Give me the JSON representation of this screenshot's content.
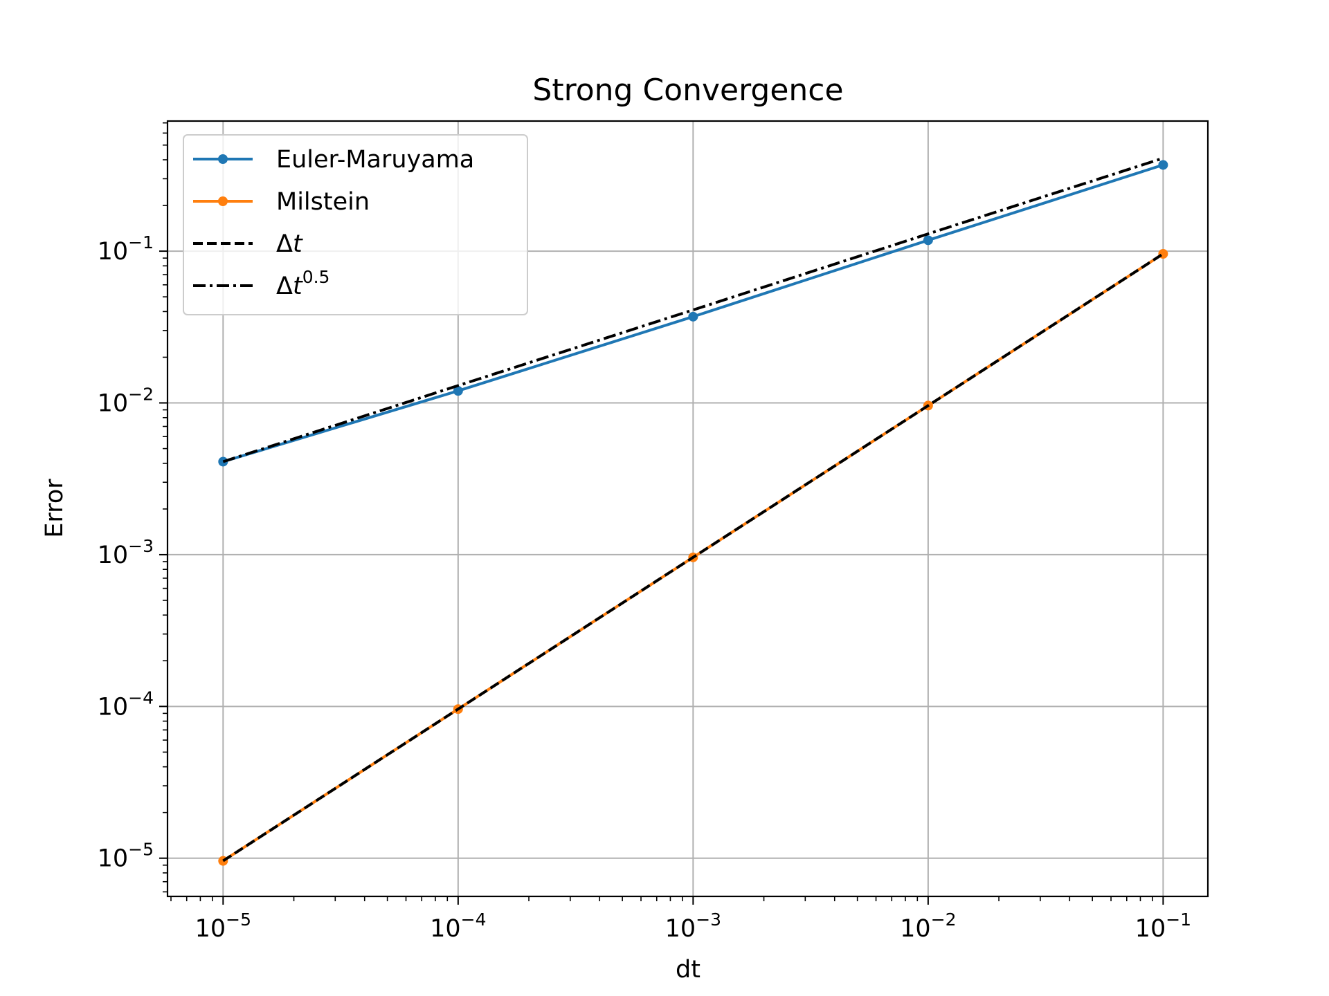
{
  "chart_data": {
    "type": "line",
    "title": "Strong Convergence",
    "xlabel": "dt",
    "ylabel": "Error",
    "xscale": "log",
    "yscale": "log",
    "xlim": [
      5.8e-06,
      0.155
    ],
    "ylim": [
      5.6e-06,
      0.72
    ],
    "grid": true,
    "legend_position": "top-left",
    "x": [
      1e-05,
      0.0001,
      0.001,
      0.01,
      0.1
    ],
    "series": [
      {
        "name": "Euler-Maruyama",
        "color": "#1f77b4",
        "style": "solid",
        "marker": "circle",
        "values": [
          0.0041,
          0.012,
          0.037,
          0.118,
          0.37
        ]
      },
      {
        "name": "Milstein",
        "color": "#ff7f0e",
        "style": "solid",
        "marker": "circle",
        "values": [
          9.6e-06,
          9.6e-05,
          0.00096,
          0.0096,
          0.096
        ]
      },
      {
        "name": "Δt",
        "color": "#000000",
        "style": "dashed",
        "marker": "none",
        "values": [
          9.6e-06,
          9.6e-05,
          0.00096,
          0.0096,
          0.096
        ]
      },
      {
        "name": "Δt^0.5",
        "color": "#000000",
        "style": "dashdot",
        "marker": "none",
        "values": [
          0.0041,
          0.013,
          0.041,
          0.13,
          0.41
        ]
      }
    ],
    "xticks": [
      {
        "base": "10",
        "exp": "−5"
      },
      {
        "base": "10",
        "exp": "−4"
      },
      {
        "base": "10",
        "exp": "−3"
      },
      {
        "base": "10",
        "exp": "−2"
      },
      {
        "base": "10",
        "exp": "−1"
      }
    ],
    "yticks": [
      {
        "base": "10",
        "exp": "−5"
      },
      {
        "base": "10",
        "exp": "−4"
      },
      {
        "base": "10",
        "exp": "−3"
      },
      {
        "base": "10",
        "exp": "−2"
      },
      {
        "base": "10",
        "exp": "−1"
      }
    ],
    "legend": [
      {
        "label": "Euler-Maruyama",
        "sup": ""
      },
      {
        "label": "Milstein",
        "sup": ""
      },
      {
        "label": "Δt",
        "sup": ""
      },
      {
        "label": "Δt",
        "sup": "0.5"
      }
    ]
  }
}
